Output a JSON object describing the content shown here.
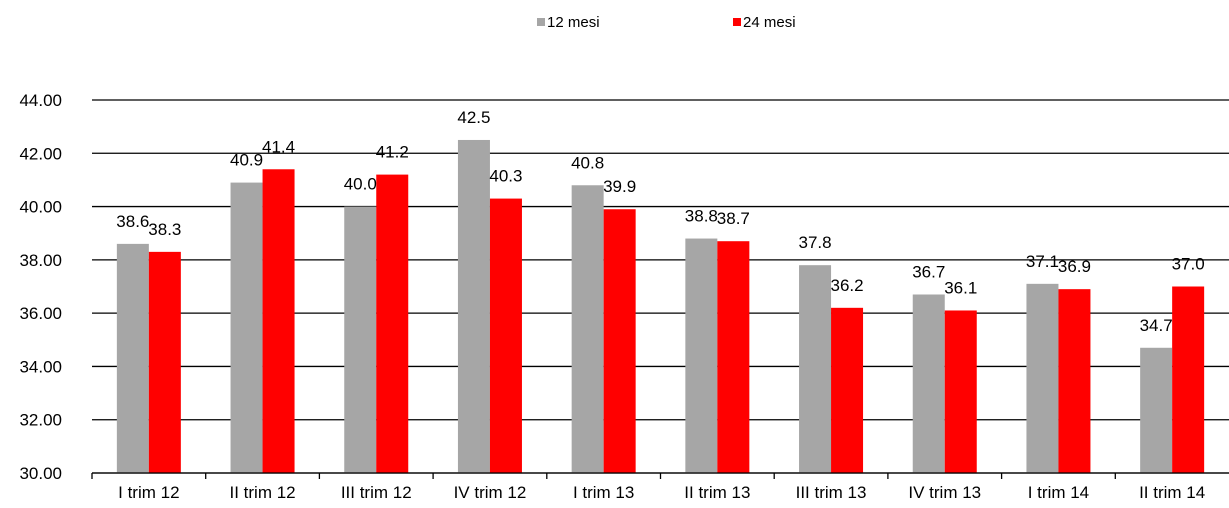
{
  "chart_data": {
    "type": "bar",
    "categories": [
      "I trim 12",
      "II trim 12",
      "III trim 12",
      "IV trim 12",
      "I trim 13",
      "II trim 13",
      "III trim 13",
      "IV trim 13",
      "I trim 14",
      "II trim 14"
    ],
    "series": [
      {
        "name": "12 mesi",
        "color": "#a6a6a6",
        "values": [
          38.6,
          40.9,
          40.0,
          42.5,
          40.8,
          38.8,
          37.8,
          36.7,
          37.1,
          34.7
        ]
      },
      {
        "name": "24 mesi",
        "color": "#ff0000",
        "values": [
          38.3,
          41.4,
          41.2,
          40.3,
          39.9,
          38.7,
          36.2,
          36.1,
          36.9,
          37.0
        ]
      }
    ],
    "ylim": [
      30,
      44
    ],
    "yticks": [
      "30.00",
      "32.00",
      "34.00",
      "36.00",
      "38.00",
      "40.00",
      "42.00",
      "44.00"
    ],
    "grid": true,
    "legend": "top-center"
  }
}
